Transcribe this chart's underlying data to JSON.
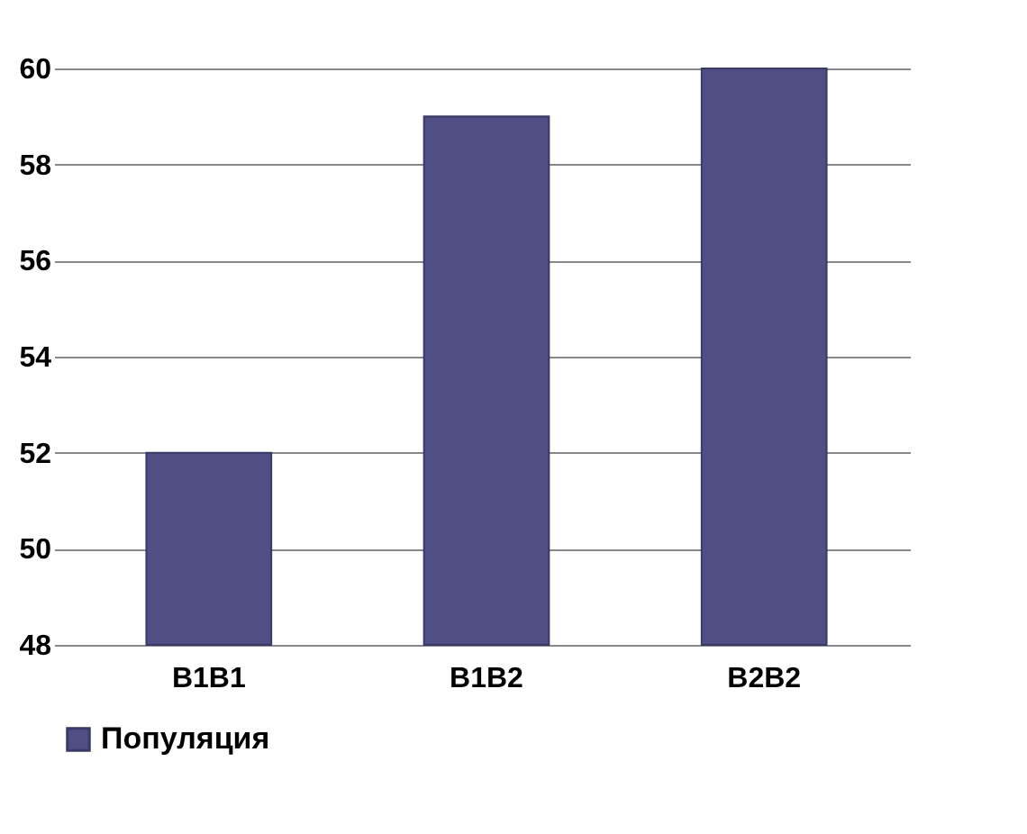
{
  "chart_data": {
    "type": "bar",
    "categories": [
      "B1B1",
      "B1B2",
      "B2B2"
    ],
    "series": [
      {
        "name": "Популяция",
        "color": "#4f4f85",
        "values": [
          52,
          59,
          60
        ]
      }
    ],
    "ylim": [
      48,
      60
    ],
    "yticks": [
      48,
      50,
      52,
      54,
      56,
      58,
      60
    ],
    "grid": "y",
    "legend": "bottom"
  }
}
